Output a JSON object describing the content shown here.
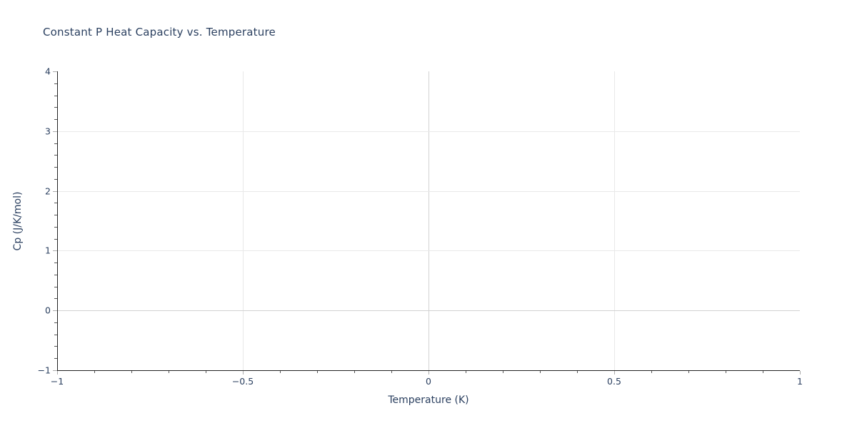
{
  "chart_data": {
    "type": "line",
    "title": "Constant P Heat Capacity vs. Temperature",
    "xlabel": "Temperature (K)",
    "ylabel": "Cp (J/K/mol)",
    "xlim": [
      -1,
      1
    ],
    "ylim": [
      -1,
      4
    ],
    "xticks": {
      "values": [
        -1,
        -0.5,
        0,
        0.5,
        1
      ],
      "labels": [
        "−1",
        "−0.5",
        "0",
        "0.5",
        "1"
      ]
    },
    "yticks": {
      "values": [
        -1,
        0,
        1,
        2,
        3,
        4
      ],
      "labels": [
        "−1",
        "0",
        "1",
        "2",
        "3",
        "4"
      ]
    },
    "x_minor_tick_step": 0.1,
    "y_minor_tick_step": 0.2,
    "grid": true,
    "gridlines_x": [
      -0.5,
      0,
      0.5
    ],
    "gridlines_y": [
      0,
      1,
      2,
      3
    ],
    "zeroline_x": 0,
    "zeroline_y": 0,
    "legend": false,
    "series": []
  },
  "colors": {
    "font": "#2a3f5f",
    "grid": "#e9e9e9",
    "zeroline": "#d2d2d2",
    "axis_line": "#232323",
    "major_tick": "#abababff",
    "minor_tick": "#545454",
    "background": "#ffffff"
  }
}
